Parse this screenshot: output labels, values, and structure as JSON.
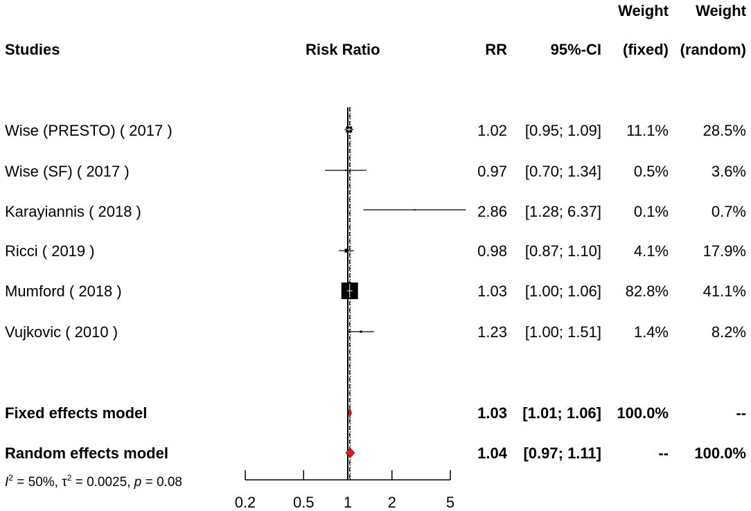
{
  "headers": {
    "studies": "Studies",
    "risk_ratio": "Risk Ratio",
    "rr": "RR",
    "ci": "95%-CI",
    "weight_fixed_top": "Weight",
    "weight_fixed_bottom": "(fixed)",
    "weight_random_top": "Weight",
    "weight_random_bottom": "(random)"
  },
  "studies": [
    {
      "label": "Wise (PRESTO)  ( 2017 )",
      "rr": "1.02",
      "ci": "[0.95; 1.09]",
      "w_fixed": "11.1%",
      "w_random": "28.5%"
    },
    {
      "label": "Wise (SF)  ( 2017 )",
      "rr": "0.97",
      "ci": "[0.70; 1.34]",
      "w_fixed": "0.5%",
      "w_random": "3.6%"
    },
    {
      "label": "Karayiannis  ( 2018 )",
      "rr": "2.86",
      "ci": "[1.28; 6.37]",
      "w_fixed": "0.1%",
      "w_random": "0.7%"
    },
    {
      "label": "Ricci  ( 2019 )",
      "rr": "0.98",
      "ci": "[0.87; 1.10]",
      "w_fixed": "4.1%",
      "w_random": "17.9%"
    },
    {
      "label": "Mumford  ( 2018 )",
      "rr": "1.03",
      "ci": "[1.00; 1.06]",
      "w_fixed": "82.8%",
      "w_random": "41.1%"
    },
    {
      "label": "Vujkovic  ( 2010 )",
      "rr": "1.23",
      "ci": "[1.00; 1.51]",
      "w_fixed": "1.4%",
      "w_random": "8.2%"
    }
  ],
  "pooled": [
    {
      "label": "Fixed effects model",
      "rr": "1.03",
      "ci": "[1.01; 1.06]",
      "w_fixed": "100.0%",
      "w_random": "--"
    },
    {
      "label": "Random effects model",
      "rr": "1.04",
      "ci": "[0.97; 1.11]",
      "w_fixed": "--",
      "w_random": "100.0%"
    }
  ],
  "heterogeneity": {
    "i2_symbol": "I",
    "i2_exp": "2",
    "i2_value": " = 50%, ",
    "tau_symbol": "τ",
    "tau_exp": "2",
    "tau_value": " = 0.0025, ",
    "p_symbol": "p",
    "p_value": " = 0.08"
  },
  "colors": {
    "diamond_fill": "#e0191b",
    "ink": "#000000"
  },
  "chart_data": {
    "type": "forest",
    "scale": "log",
    "xlim": [
      0.2,
      5
    ],
    "ticks": [
      0.2,
      0.5,
      1,
      2,
      5
    ],
    "tick_labels": [
      "0.2",
      "0.5",
      "1",
      "2",
      "5"
    ],
    "xlabel": "",
    "title": "Risk Ratio",
    "null_line": 1,
    "studies": [
      {
        "name": "Wise (PRESTO)",
        "rr": 1.02,
        "lo": 0.95,
        "hi": 1.09,
        "w_fixed": 11.1,
        "w_random": 28.5
      },
      {
        "name": "Wise (SF)",
        "rr": 0.97,
        "lo": 0.7,
        "hi": 1.34,
        "w_fixed": 0.5,
        "w_random": 3.6
      },
      {
        "name": "Karayiannis",
        "rr": 2.86,
        "lo": 1.28,
        "hi": 6.37,
        "w_fixed": 0.1,
        "w_random": 0.7
      },
      {
        "name": "Ricci",
        "rr": 0.98,
        "lo": 0.87,
        "hi": 1.1,
        "w_fixed": 4.1,
        "w_random": 17.9
      },
      {
        "name": "Mumford",
        "rr": 1.03,
        "lo": 1.0,
        "hi": 1.06,
        "w_fixed": 82.8,
        "w_random": 41.1
      },
      {
        "name": "Vujkovic",
        "rr": 1.23,
        "lo": 1.0,
        "hi": 1.51,
        "w_fixed": 1.4,
        "w_random": 8.2
      }
    ],
    "fixed": {
      "rr": 1.03,
      "lo": 1.01,
      "hi": 1.06
    },
    "random": {
      "rr": 1.04,
      "lo": 0.97,
      "hi": 1.11
    }
  }
}
